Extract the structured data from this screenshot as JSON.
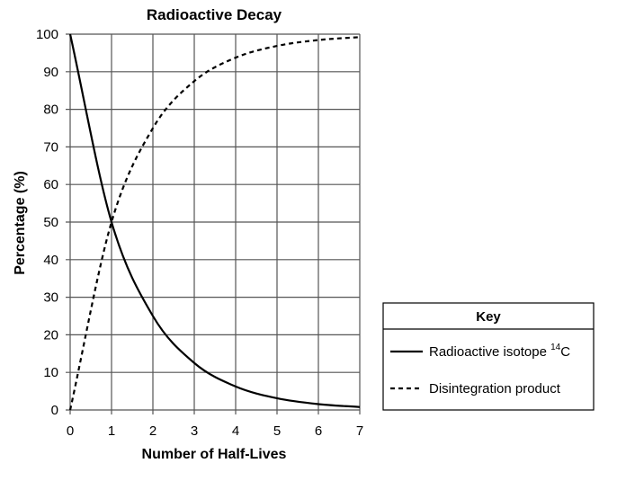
{
  "chart_data": {
    "type": "line",
    "title": "Radioactive Decay",
    "xlabel": "Number of Half-Lives",
    "ylabel": "Percentage (%)",
    "xlim": [
      0,
      7
    ],
    "ylim": [
      0,
      100
    ],
    "x_ticks": [
      "0",
      "1",
      "2",
      "3",
      "4",
      "5",
      "6",
      "7"
    ],
    "y_ticks": [
      "0",
      "10",
      "20",
      "30",
      "40",
      "50",
      "60",
      "70",
      "80",
      "90",
      "100"
    ],
    "grid": true,
    "x": [
      0,
      1,
      2,
      3,
      4,
      5,
      6,
      7
    ],
    "series": [
      {
        "name_prefix": "Radioactive isotope ",
        "name_sup": "14",
        "name_suffix": "C",
        "style": "solid",
        "values": [
          100,
          50,
          25,
          12.5,
          6.25,
          3.125,
          1.5625,
          0.78125
        ]
      },
      {
        "name": "Disintegration product",
        "style": "dashed",
        "values": [
          0,
          50,
          75,
          87.5,
          93.75,
          96.875,
          98.4375,
          99.21875
        ]
      }
    ],
    "legend": {
      "title": "Key",
      "placement": "right"
    }
  }
}
